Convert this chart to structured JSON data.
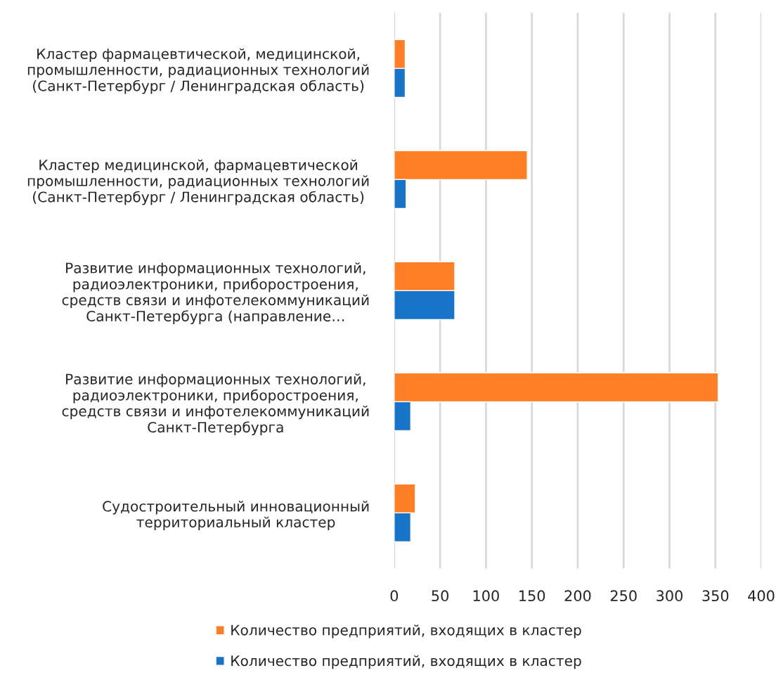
{
  "chart_data": {
    "type": "bar",
    "orientation": "horizontal",
    "categories": [
      "Кластер фармацевтической, медицинской,\nпромышленности, радиационных технологий\n(Санкт-Петербург / Ленинградская область)",
      "Кластер медицинской, фармацевтической\nпромышленности, радиационных технологий\n(Санкт-Петербург / Ленинградская область)",
      "Развитие информационных технологий,\nрадиоэлектроники, приборостроения,\nсредств связи и инфотелекоммуникаций\nСанкт-Петербурга (направление…",
      "Развитие информационных технологий,\nрадиоэлектроники, приборостроения,\nсредств связи и инфотелекоммуникаций\nСанкт-Петербурга",
      "Судостроительный инновационный\nтерриториальный кластер"
    ],
    "series": [
      {
        "name": "Количество предприятий, входящих в кластер",
        "color": "#ff7f27",
        "values": [
          12,
          145,
          66,
          353,
          23
        ]
      },
      {
        "name": "Количество предприятий, входящих в кластер",
        "color": "#1874c8",
        "values": [
          12,
          13,
          66,
          18,
          18
        ]
      }
    ],
    "xlim": [
      0,
      400
    ],
    "xticks": [
      0,
      50,
      100,
      150,
      200,
      250,
      300,
      350,
      400
    ],
    "grid": "x",
    "legend": "bottom"
  }
}
